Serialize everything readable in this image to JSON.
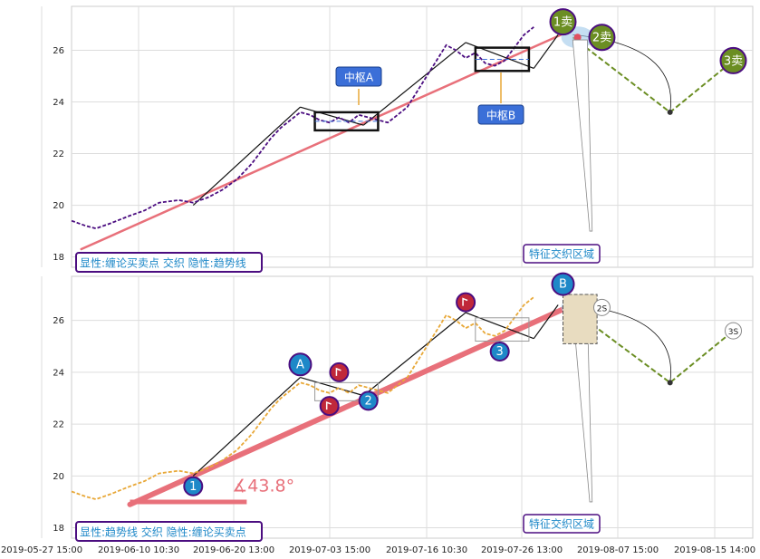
{
  "chart_data": [
    {
      "type": "line",
      "panel": "top",
      "ylim": [
        17.6,
        27.7
      ],
      "yticks": [
        18,
        20,
        22,
        24,
        26
      ],
      "xticks": [
        "2019-05-27 15:00",
        "2019-06-10 10:30",
        "2019-06-20 13:00",
        "2019-07-03 15:00",
        "2019-07-16 10:30",
        "2019-07-26 13:00",
        "2019-08-07 15:00",
        "2019-08-15 14:00"
      ],
      "grid": true,
      "price": {
        "color": "#4b0d80",
        "points": [
          [
            0,
            19.4
          ],
          [
            3,
            19.2
          ],
          [
            5,
            19.1
          ],
          [
            8,
            19.3
          ],
          [
            12,
            19.6
          ],
          [
            15,
            19.8
          ],
          [
            18,
            20.1
          ],
          [
            22,
            20.2
          ],
          [
            25,
            20.1
          ],
          [
            28,
            20.3
          ],
          [
            31,
            20.6
          ],
          [
            34,
            21.0
          ],
          [
            37,
            21.6
          ],
          [
            39,
            22.1
          ],
          [
            41,
            22.6
          ],
          [
            43,
            23.0
          ],
          [
            45,
            23.3
          ],
          [
            47,
            23.6
          ],
          [
            49,
            23.5
          ],
          [
            51,
            23.3
          ],
          [
            53,
            23.2
          ],
          [
            55,
            23.4
          ],
          [
            57,
            23.2
          ],
          [
            59,
            23.5
          ],
          [
            61,
            23.4
          ],
          [
            63,
            23.3
          ],
          [
            65,
            23.2
          ],
          [
            67,
            23.5
          ],
          [
            69,
            23.8
          ],
          [
            71,
            24.4
          ],
          [
            73,
            25.0
          ],
          [
            75,
            25.6
          ],
          [
            77,
            26.2
          ],
          [
            79,
            26.0
          ],
          [
            81,
            25.7
          ],
          [
            83,
            25.9
          ],
          [
            85,
            25.5
          ],
          [
            87,
            25.4
          ],
          [
            89,
            25.6
          ],
          [
            91,
            26.1
          ],
          [
            93,
            26.6
          ],
          [
            95,
            26.9
          ]
        ]
      },
      "trendline": {
        "color": "#e8707a",
        "points": [
          [
            2,
            18.3
          ],
          [
            103,
            26.8
          ]
        ]
      },
      "projection": {
        "color": "#6b8e23",
        "points": [
          [
            103,
            26.5
          ],
          [
            123,
            23.6
          ],
          [
            136,
            25.6
          ]
        ]
      },
      "stroke_segments": [
        [
          [
            25,
            20.0
          ],
          [
            47,
            23.8
          ]
        ],
        [
          [
            47,
            23.8
          ],
          [
            60,
            23.1
          ]
        ],
        [
          [
            60,
            23.1
          ],
          [
            81,
            26.3
          ]
        ],
        [
          [
            81,
            26.3
          ],
          [
            95,
            25.3
          ]
        ],
        [
          [
            95,
            25.3
          ],
          [
            100,
            26.6
          ]
        ]
      ],
      "pivots": [
        {
          "label": "中枢A",
          "x_range": [
            50,
            63
          ],
          "y_range": [
            22.9,
            23.6
          ]
        },
        {
          "label": "中枢B",
          "x_range": [
            83,
            94
          ],
          "y_range": [
            25.2,
            26.1
          ]
        }
      ],
      "points": [
        {
          "label": "1卖",
          "x": 101,
          "y": 27.1
        },
        {
          "label": "2卖",
          "x": 109,
          "y": 26.5
        },
        {
          "label": "3卖",
          "x": 136,
          "y": 25.6
        }
      ],
      "annotations": [
        "中枢A",
        "中枢B",
        "特征交织区域"
      ],
      "legend": "显性:缠论买卖点 交织 隐性:趋势线"
    },
    {
      "type": "line",
      "panel": "bottom",
      "ylim": [
        17.6,
        27.7
      ],
      "yticks": [
        18,
        20,
        22,
        24,
        26
      ],
      "grid": true,
      "price": {
        "color": "#e8a838",
        "points": [
          [
            0,
            19.4
          ],
          [
            3,
            19.2
          ],
          [
            5,
            19.1
          ],
          [
            8,
            19.3
          ],
          [
            12,
            19.6
          ],
          [
            15,
            19.8
          ],
          [
            18,
            20.1
          ],
          [
            22,
            20.2
          ],
          [
            25,
            20.1
          ],
          [
            28,
            20.3
          ],
          [
            31,
            20.6
          ],
          [
            34,
            21.0
          ],
          [
            37,
            21.6
          ],
          [
            39,
            22.1
          ],
          [
            41,
            22.6
          ],
          [
            43,
            23.0
          ],
          [
            45,
            23.3
          ],
          [
            47,
            23.6
          ],
          [
            49,
            23.5
          ],
          [
            51,
            23.3
          ],
          [
            53,
            23.2
          ],
          [
            55,
            23.4
          ],
          [
            57,
            23.2
          ],
          [
            59,
            23.5
          ],
          [
            61,
            23.4
          ],
          [
            63,
            23.3
          ],
          [
            65,
            23.2
          ],
          [
            67,
            23.5
          ],
          [
            69,
            23.8
          ],
          [
            71,
            24.4
          ],
          [
            73,
            25.0
          ],
          [
            75,
            25.6
          ],
          [
            77,
            26.2
          ],
          [
            79,
            26.0
          ],
          [
            81,
            25.7
          ],
          [
            83,
            25.9
          ],
          [
            85,
            25.5
          ],
          [
            87,
            25.4
          ],
          [
            89,
            25.6
          ],
          [
            91,
            26.1
          ],
          [
            93,
            26.6
          ],
          [
            95,
            26.9
          ]
        ]
      },
      "trendline": {
        "color": "#e8707a",
        "points": [
          [
            12,
            18.9
          ],
          [
            103,
            26.6
          ]
        ]
      },
      "angle_label": "∡43.8°",
      "projection": {
        "color": "#6b8e23",
        "points": [
          [
            103,
            26.4
          ],
          [
            123,
            23.6
          ],
          [
            136,
            25.6
          ]
        ]
      },
      "stroke_segments": [
        [
          [
            25,
            20.0
          ],
          [
            47,
            23.8
          ]
        ],
        [
          [
            47,
            23.8
          ],
          [
            60,
            23.1
          ]
        ],
        [
          [
            60,
            23.1
          ],
          [
            81,
            26.3
          ]
        ],
        [
          [
            81,
            26.3
          ],
          [
            95,
            25.3
          ]
        ],
        [
          [
            95,
            25.3
          ],
          [
            100,
            26.6
          ]
        ]
      ],
      "points": [
        {
          "label": "1",
          "x": 25,
          "y": 19.6,
          "color": "#1e88c8"
        },
        {
          "label": "A",
          "x": 47,
          "y": 24.3,
          "color": "#1e88c8"
        },
        {
          "label": "2",
          "x": 61,
          "y": 22.9,
          "color": "#1e88c8"
        },
        {
          "label": "3",
          "x": 88,
          "y": 24.8,
          "color": "#1e88c8"
        },
        {
          "label": "B",
          "x": 101,
          "y": 27.4,
          "color": "#1e88c8"
        },
        {
          "label": "2S",
          "x": 109,
          "y": 26.5,
          "color": "#ffffff"
        },
        {
          "label": "3S",
          "x": 136,
          "y": 25.6,
          "color": "#ffffff"
        }
      ],
      "note_points": [
        {
          "x": 53,
          "y": 22.7
        },
        {
          "x": 55,
          "y": 24.0
        },
        {
          "x": 81,
          "y": 26.7
        }
      ],
      "annotations": [
        "特征交织区域"
      ],
      "legend": "显性:趋势线 交织 隐性:缠论买卖点"
    }
  ],
  "labels": {
    "top_legend": "显性:缠论买卖点 交织 隐性:趋势线",
    "bottom_legend": "显性:趋势线 交织 隐性:缠论买卖点",
    "pivot_a": "中枢A",
    "pivot_b": "中枢B",
    "feature_top": "特征交织区域",
    "feature_bottom": "特征交织区域",
    "angle": "∡43.8°",
    "sell1": "1卖",
    "sell2": "2卖",
    "sell3": "3卖"
  },
  "colors": {
    "trend": "#e8707a",
    "projection": "#6b8e23",
    "badge_blue": "#3b6fd8",
    "legend_border": "#4b0d80",
    "point_blue": "#1e88c8",
    "point_red": "#c0283a",
    "sell_green": "#6b8e23"
  }
}
